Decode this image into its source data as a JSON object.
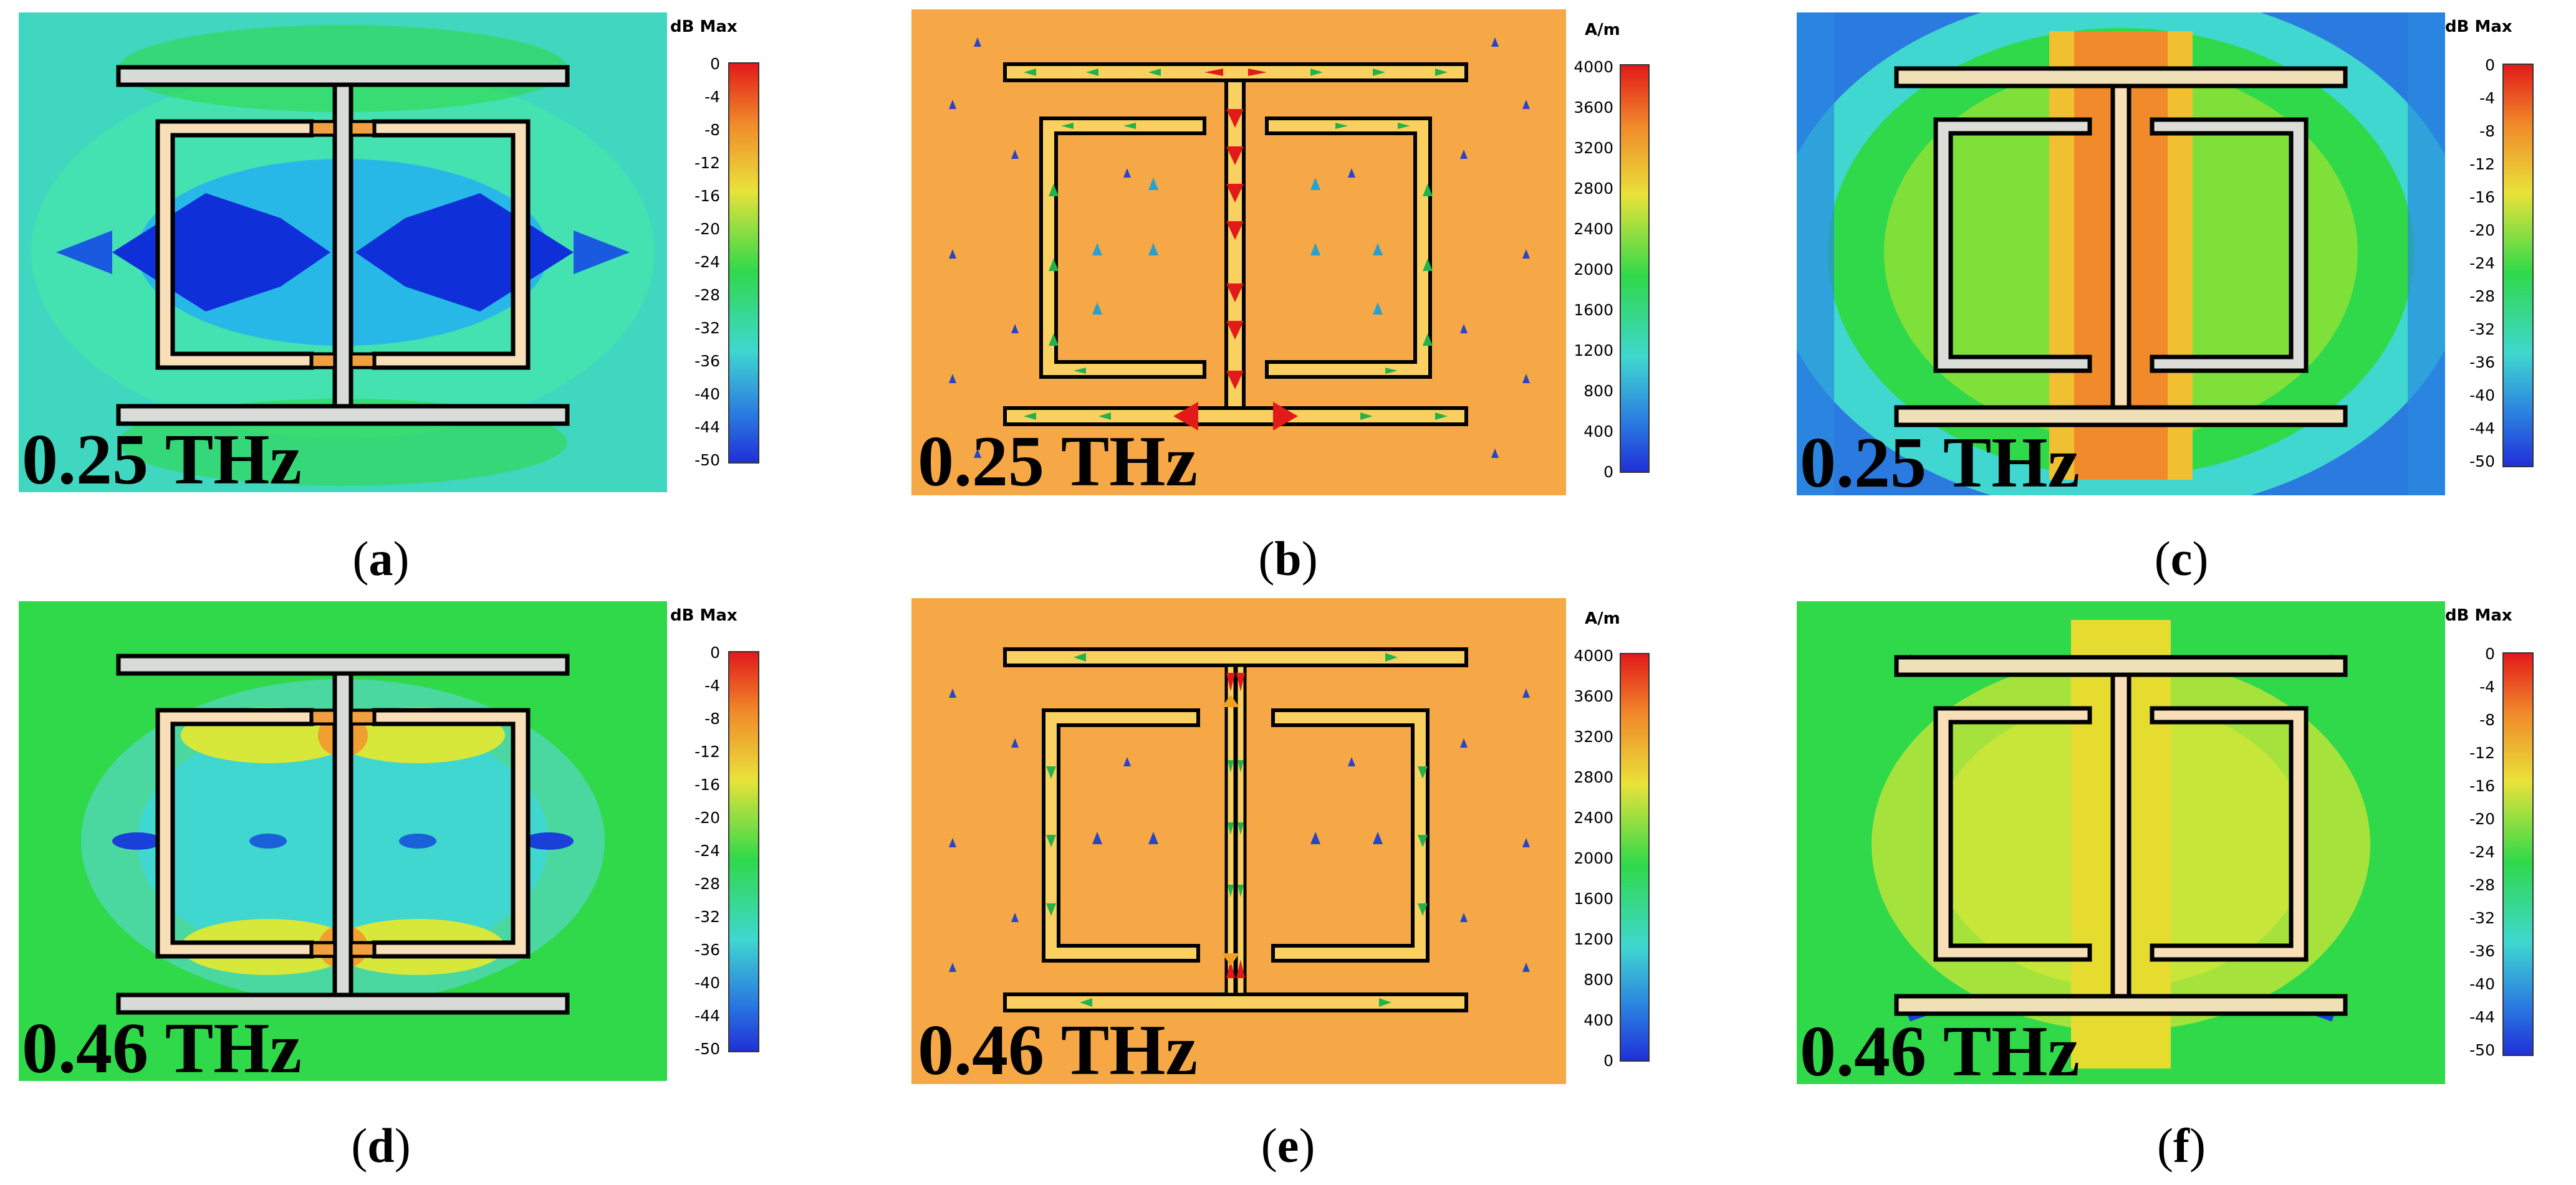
{
  "figure": {
    "db_scale": {
      "unit": "dB",
      "max_label": "Max",
      "ticks": [
        "0",
        "-4",
        "-8",
        "-12",
        "-16",
        "-20",
        "-24",
        "-28",
        "-32",
        "-36",
        "-40",
        "-44",
        "-50"
      ]
    },
    "am_scale": {
      "unit": "A/m",
      "ticks": [
        "4000",
        "3600",
        "3200",
        "2800",
        "2400",
        "2000",
        "1600",
        "1200",
        "800",
        "400",
        "0"
      ]
    },
    "panels": [
      {
        "letter": "a",
        "frequency": "0.25 THz",
        "type": "field-dB"
      },
      {
        "letter": "b",
        "frequency": "0.25 THz",
        "type": "surface-current"
      },
      {
        "letter": "c",
        "frequency": "0.25 THz",
        "type": "field-dB"
      },
      {
        "letter": "d",
        "frequency": "0.46 THz",
        "type": "field-dB"
      },
      {
        "letter": "e",
        "frequency": "0.46 THz",
        "type": "surface-current"
      },
      {
        "letter": "f",
        "frequency": "0.46 THz",
        "type": "field-dB"
      }
    ],
    "colors": {
      "field_green": "#2fd94a",
      "field_cyan": "#3fd7d0",
      "field_blue": "#1030d8",
      "field_yellow": "#d8e83a",
      "field_orange": "#f08a2a",
      "orange_bg": "#f5a845",
      "metal_fill": "#fad88a",
      "metal_light": "#d9dbd8",
      "arrow_red": "#e21a1a",
      "arrow_green": "#22b24a",
      "arrow_blue": "#2844c8"
    }
  }
}
